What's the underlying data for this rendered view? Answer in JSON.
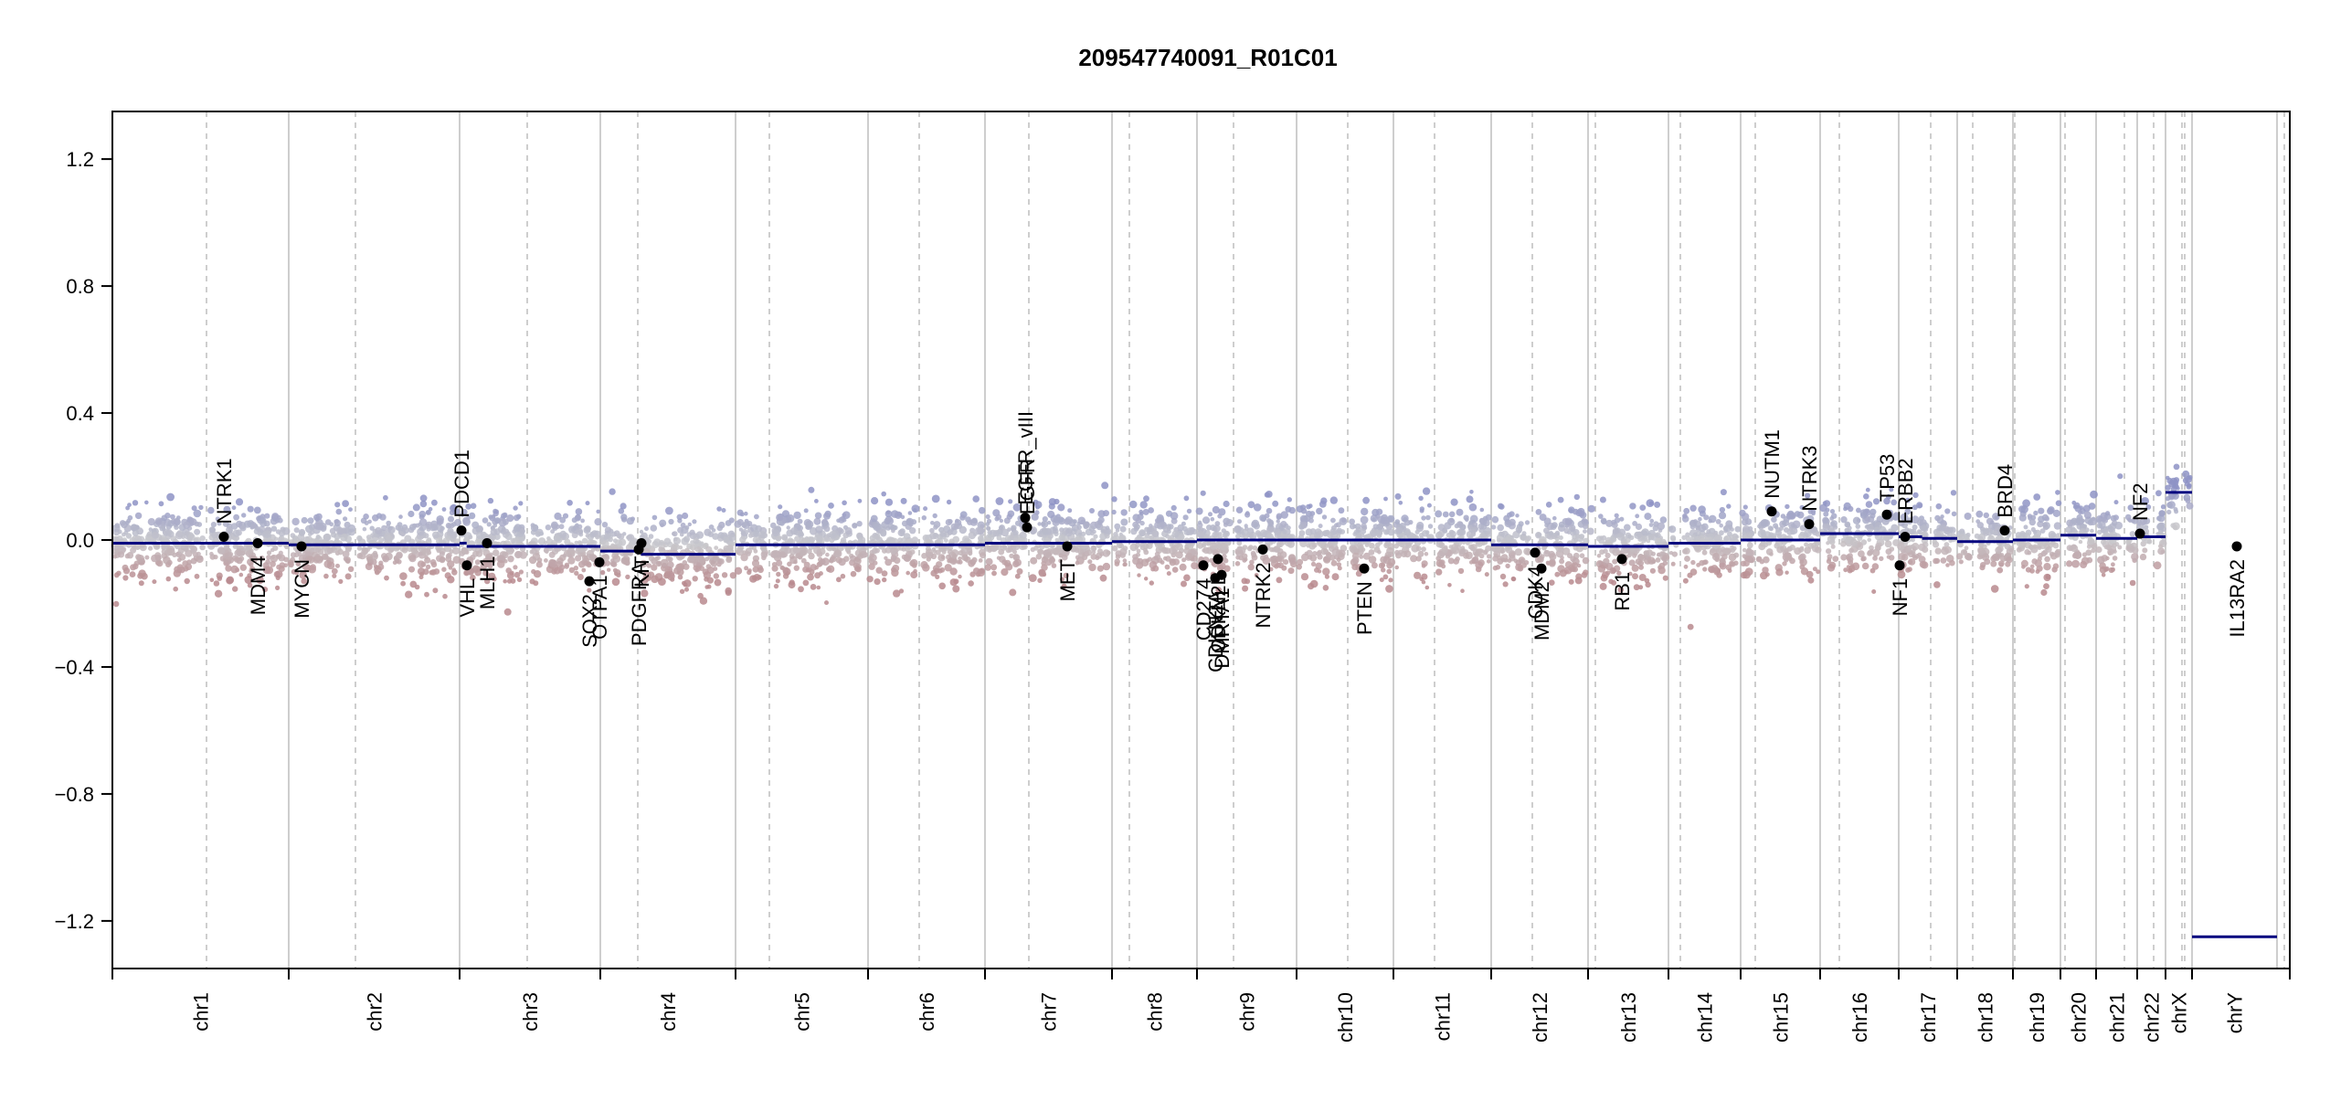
{
  "chart_data": {
    "type": "scatter",
    "title": "209547740091_R01C01",
    "xlabel": "",
    "ylabel": "",
    "ylim": [
      -1.35,
      1.35
    ],
    "y_ticks": [
      -1.2,
      -0.8,
      -0.4,
      0.0,
      0.4,
      0.8,
      1.2
    ],
    "y_tick_labels": [
      "−1.2",
      "−0.8",
      "−0.4",
      "0.0",
      "0.4",
      "0.8",
      "1.2"
    ],
    "grid": false,
    "legend": "none",
    "colors": {
      "gain": "#8e93c6",
      "neutral": "#c8c8cc",
      "loss": "#b98a8e",
      "segment": "#00007f",
      "gene_marker": "#000000",
      "chrom_boundary": "#bdbdbd",
      "centromere": "#bdbdbd"
    },
    "chromosomes": [
      {
        "name": "chr1",
        "segments": [
          [
            0.0,
            1.0,
            -0.01
          ]
        ]
      },
      {
        "name": "chr2",
        "segments": [
          [
            0.0,
            1.0,
            -0.015
          ]
        ]
      },
      {
        "name": "chr3",
        "segments": [
          [
            0.0,
            0.05,
            -0.01
          ],
          [
            0.05,
            1.0,
            -0.02
          ]
        ]
      },
      {
        "name": "chr4",
        "segments": [
          [
            0.0,
            0.3,
            -0.035
          ],
          [
            0.3,
            1.0,
            -0.045
          ]
        ]
      },
      {
        "name": "chr5",
        "segments": [
          [
            0.0,
            1.0,
            -0.015
          ]
        ]
      },
      {
        "name": "chr6",
        "segments": [
          [
            0.0,
            1.0,
            -0.015
          ]
        ]
      },
      {
        "name": "chr7",
        "segments": [
          [
            0.0,
            1.0,
            -0.01
          ]
        ]
      },
      {
        "name": "chr8",
        "segments": [
          [
            0.0,
            1.0,
            -0.005
          ]
        ]
      },
      {
        "name": "chr9",
        "segments": [
          [
            0.0,
            1.0,
            0.0
          ]
        ]
      },
      {
        "name": "chr10",
        "segments": [
          [
            0.0,
            1.0,
            0.0
          ]
        ]
      },
      {
        "name": "chr11",
        "segments": [
          [
            0.0,
            1.0,
            0.0
          ]
        ]
      },
      {
        "name": "chr12",
        "segments": [
          [
            0.0,
            1.0,
            -0.015
          ]
        ]
      },
      {
        "name": "chr13",
        "segments": [
          [
            0.0,
            1.0,
            -0.02
          ]
        ]
      },
      {
        "name": "chr14",
        "segments": [
          [
            0.0,
            1.0,
            -0.01
          ]
        ]
      },
      {
        "name": "chr15",
        "segments": [
          [
            0.0,
            1.0,
            0.0
          ]
        ]
      },
      {
        "name": "chr16",
        "segments": [
          [
            0.0,
            1.0,
            0.02
          ]
        ]
      },
      {
        "name": "chr17",
        "segments": [
          [
            0.0,
            0.4,
            0.01
          ],
          [
            0.4,
            1.0,
            0.005
          ]
        ]
      },
      {
        "name": "chr18",
        "segments": [
          [
            0.0,
            1.0,
            -0.005
          ]
        ]
      },
      {
        "name": "chr19",
        "segments": [
          [
            0.0,
            1.0,
            0.0
          ]
        ]
      },
      {
        "name": "chr20",
        "segments": [
          [
            0.0,
            1.0,
            0.015
          ]
        ]
      },
      {
        "name": "chr21",
        "segments": [
          [
            0.0,
            1.0,
            0.005
          ]
        ]
      },
      {
        "name": "chr22",
        "segments": [
          [
            0.0,
            1.0,
            0.01
          ]
        ]
      },
      {
        "name": "chrX",
        "segments": [
          [
            0.0,
            1.0,
            0.15
          ]
        ]
      },
      {
        "name": "chrY",
        "segments": [
          [
            0.0,
            1.0,
            -1.25
          ]
        ]
      }
    ],
    "genes": [
      {
        "name": "NTRK1",
        "chrom": "chr1",
        "value": 0.01,
        "label_side": "above"
      },
      {
        "name": "MDM4",
        "chrom": "chr1",
        "value": -0.01,
        "label_side": "below"
      },
      {
        "name": "MYCN",
        "chrom": "chr2",
        "value": -0.02,
        "label_side": "below"
      },
      {
        "name": "PDCD1",
        "chrom": "chr2",
        "value": 0.03,
        "label_side": "above"
      },
      {
        "name": "VHL",
        "chrom": "chr3",
        "value": -0.08,
        "label_side": "below"
      },
      {
        "name": "MLH1",
        "chrom": "chr3",
        "value": -0.01,
        "label_side": "below"
      },
      {
        "name": "SOX2",
        "chrom": "chr3",
        "value": -0.13,
        "label_side": "below"
      },
      {
        "name": "OTPA1",
        "chrom": "chr3",
        "value": -0.07,
        "label_side": "below"
      },
      {
        "name": "PDGFRA",
        "chrom": "chr4",
        "value": -0.03,
        "label_side": "below"
      },
      {
        "name": "KIT",
        "chrom": "chr4",
        "value": -0.01,
        "label_side": "below"
      },
      {
        "name": "EGFR_vIII",
        "chrom": "chr7",
        "value": 0.07,
        "label_side": "above"
      },
      {
        "name": "EGFR",
        "chrom": "chr7",
        "value": 0.04,
        "label_side": "above"
      },
      {
        "name": "MET",
        "chrom": "chr7",
        "value": -0.02,
        "label_side": "below"
      },
      {
        "name": "CD274",
        "chrom": "chr9",
        "value": -0.08,
        "label_side": "below"
      },
      {
        "name": "CDKN2A",
        "chrom": "chr9",
        "value": -0.12,
        "label_side": "below"
      },
      {
        "name": "DMRTA1",
        "chrom": "chr9",
        "value": -0.11,
        "label_side": "below"
      },
      {
        "name": "CDKN2B",
        "chrom": "chr9",
        "value": -0.06,
        "label_side": "below"
      },
      {
        "name": "NTRK2",
        "chrom": "chr9",
        "value": -0.03,
        "label_side": "below"
      },
      {
        "name": "PTEN",
        "chrom": "chr10",
        "value": -0.09,
        "label_side": "below"
      },
      {
        "name": "CDK4",
        "chrom": "chr12",
        "value": -0.04,
        "label_side": "below"
      },
      {
        "name": "MDM2",
        "chrom": "chr12",
        "value": -0.09,
        "label_side": "below"
      },
      {
        "name": "RB1",
        "chrom": "chr13",
        "value": -0.06,
        "label_side": "below"
      },
      {
        "name": "NUTM1",
        "chrom": "chr15",
        "value": 0.09,
        "label_side": "above"
      },
      {
        "name": "NTRK3",
        "chrom": "chr15",
        "value": 0.05,
        "label_side": "above"
      },
      {
        "name": "TP53",
        "chrom": "chr17",
        "value": 0.08,
        "label_side": "above"
      },
      {
        "name": "NF1",
        "chrom": "chr17",
        "value": -0.08,
        "label_side": "below"
      },
      {
        "name": "ERBB2",
        "chrom": "chr17",
        "value": 0.01,
        "label_side": "above"
      },
      {
        "name": "BRD4",
        "chrom": "chr19",
        "value": 0.03,
        "label_side": "above"
      },
      {
        "name": "NF2",
        "chrom": "chr22",
        "value": 0.02,
        "label_side": "above"
      },
      {
        "name": "IL13RA2",
        "chrom": "chrX",
        "value": -0.02,
        "label_side": "below"
      }
    ]
  }
}
